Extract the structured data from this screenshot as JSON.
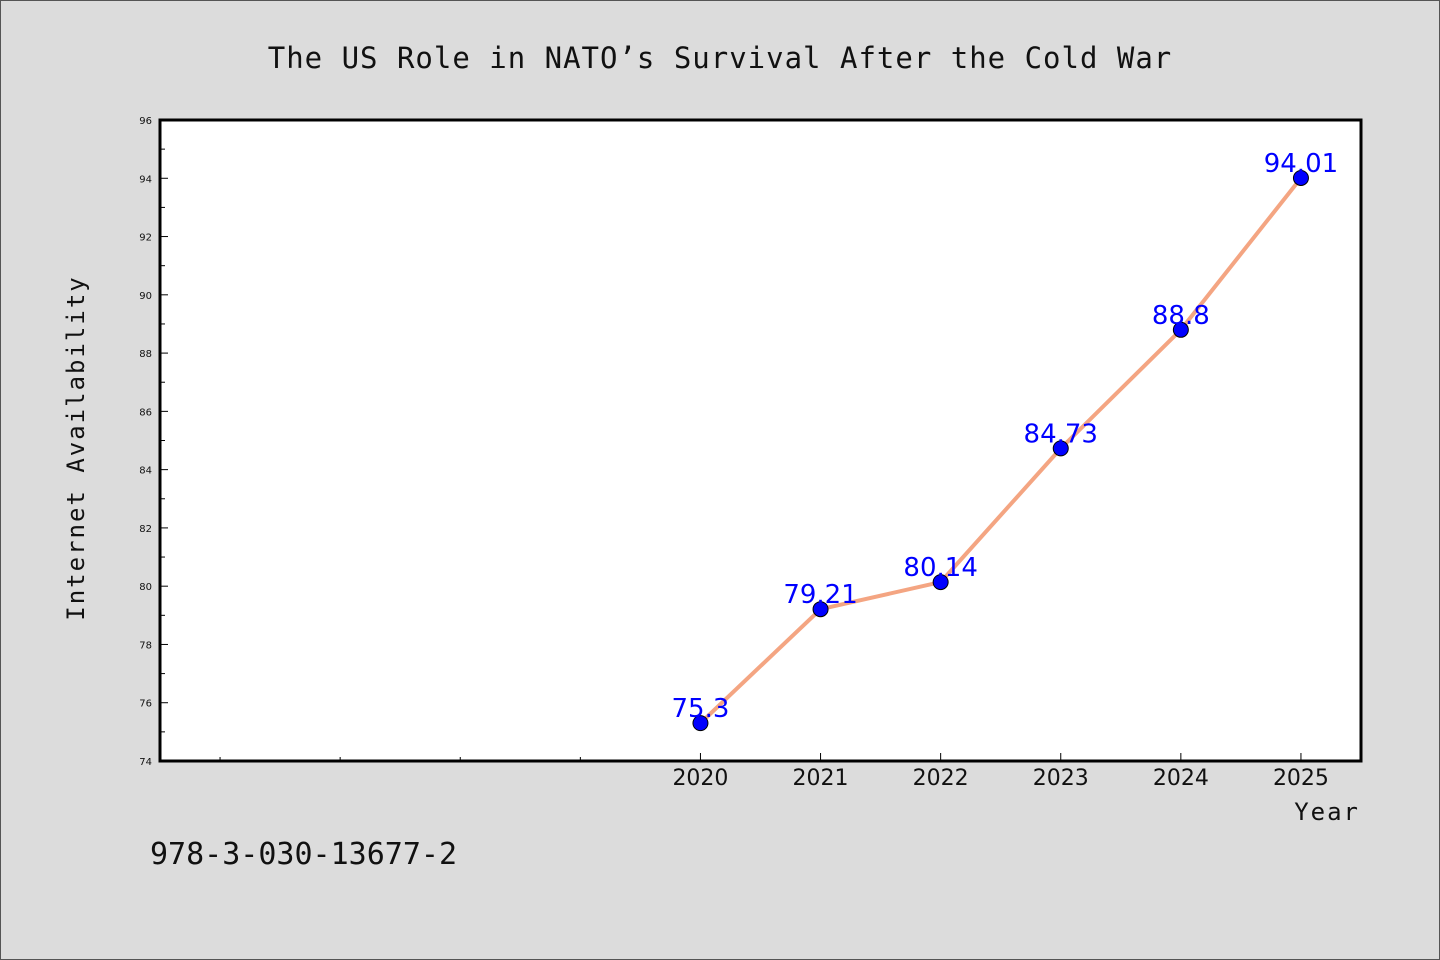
{
  "chart_data": {
    "type": "line",
    "title": "The US Role in NATO’s Survival After the Cold War",
    "xlabel": "Year",
    "ylabel": "Internet Availability",
    "x": [
      2020,
      2021,
      2022,
      2023,
      2024,
      2025
    ],
    "xlim": [
      2015.5,
      2025.5
    ],
    "ylim": [
      74,
      96
    ],
    "yticks": [
      74,
      76,
      78,
      80,
      82,
      84,
      86,
      88,
      90,
      92,
      94,
      96
    ],
    "series": [
      {
        "values": [
          75.3,
          79.21,
          80.14,
          84.73,
          88.8,
          94.01
        ],
        "labels": [
          "75.3",
          "79.21",
          "80.14",
          "84.73",
          "88.8",
          "94.01"
        ]
      }
    ],
    "grid": false,
    "colors": {
      "line": "#f4a582",
      "marker": "#0000ff",
      "data_label": "#0000ff"
    }
  },
  "footer": {
    "isbn": "978-3-030-13677-2"
  }
}
